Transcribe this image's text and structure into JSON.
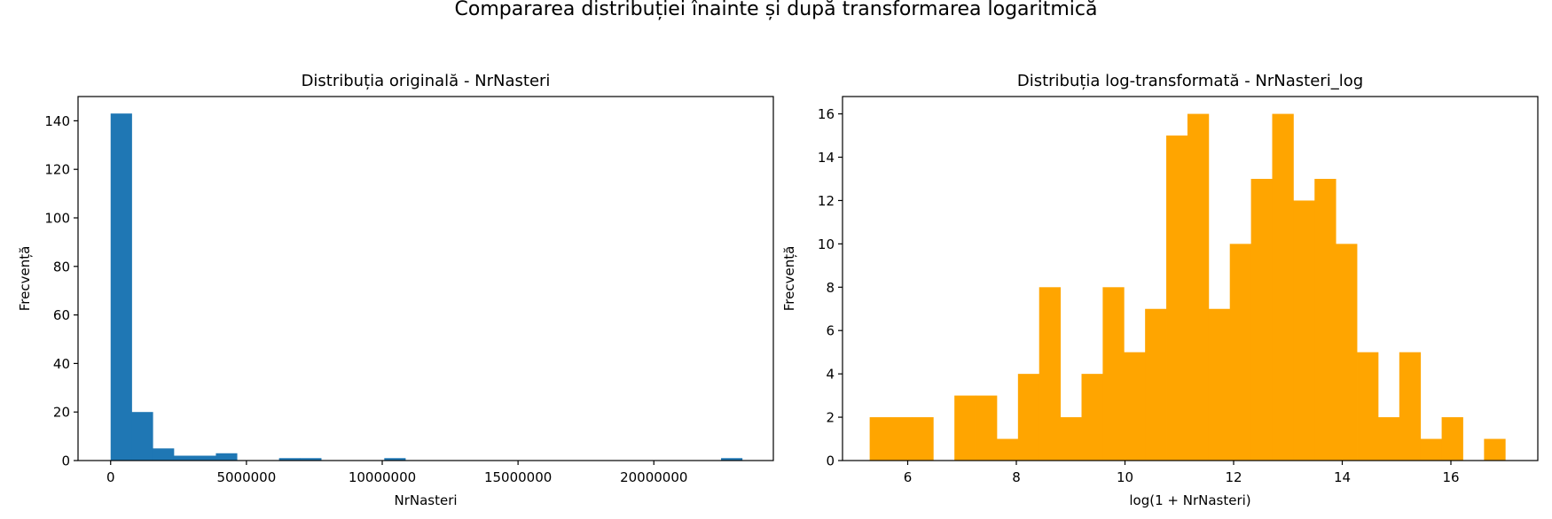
{
  "figure": {
    "suptitle": "Compararea distribuției înainte și după transformarea logaritmică"
  },
  "chart_data": [
    {
      "type": "bar",
      "title": "Distribuția originală - NrNasteri",
      "xlabel": "NrNasteri",
      "ylabel": "Frecvență",
      "color": "#1f77b4",
      "xlim": [
        -1200000,
        24400000
      ],
      "ylim": [
        0,
        150
      ],
      "xticks": [
        0,
        5000000,
        10000000,
        15000000,
        20000000
      ],
      "xtick_labels": [
        "0",
        "5000000",
        "10000000",
        "15000000",
        "20000000"
      ],
      "yticks": [
        0,
        20,
        40,
        60,
        80,
        100,
        120,
        140
      ],
      "ytick_labels": [
        "0",
        "20",
        "40",
        "60",
        "80",
        "100",
        "120",
        "140"
      ],
      "bin_edges": [
        0,
        775000,
        1550000,
        2325000,
        3100000,
        3875000,
        4650000,
        5425000,
        6200000,
        6975000,
        7750000,
        8525000,
        9300000,
        10075000,
        10850000,
        11625000,
        12400000,
        13175000,
        13950000,
        14725000,
        15500000,
        16275000,
        17050000,
        17825000,
        18600000,
        19375000,
        20150000,
        20925000,
        21700000,
        22475000,
        23250000
      ],
      "counts": [
        143,
        20,
        5,
        2,
        2,
        3,
        0,
        0,
        1,
        1,
        0,
        0,
        0,
        1,
        0,
        0,
        0,
        0,
        0,
        0,
        0,
        0,
        0,
        0,
        0,
        0,
        0,
        0,
        0,
        1
      ],
      "grid": false
    },
    {
      "type": "bar",
      "title": "Distribuția log-transformată - NrNasteri_log",
      "xlabel": "log(1 + NrNasteri)",
      "ylabel": "Frecvență",
      "color": "#ffa500",
      "xlim": [
        4.8,
        17.6
      ],
      "ylim": [
        0,
        16.8
      ],
      "xticks": [
        6,
        8,
        10,
        12,
        14,
        16
      ],
      "xtick_labels": [
        "6",
        "8",
        "10",
        "12",
        "14",
        "16"
      ],
      "yticks": [
        0,
        2,
        4,
        6,
        8,
        10,
        12,
        14,
        16
      ],
      "ytick_labels": [
        "0",
        "2",
        "4",
        "6",
        "8",
        "10",
        "12",
        "14",
        "16"
      ],
      "bin_edges": [
        5.3,
        5.69,
        6.08,
        6.47,
        6.86,
        7.25,
        7.64,
        8.03,
        8.42,
        8.81,
        9.2,
        9.59,
        9.98,
        10.37,
        10.76,
        11.15,
        11.54,
        11.93,
        12.32,
        12.71,
        13.1,
        13.49,
        13.88,
        14.27,
        14.66,
        15.05,
        15.44,
        15.83,
        16.22,
        16.61,
        17.0
      ],
      "counts": [
        2,
        2,
        2,
        0,
        3,
        3,
        1,
        4,
        8,
        2,
        4,
        8,
        5,
        7,
        15,
        16,
        7,
        10,
        13,
        16,
        12,
        13,
        10,
        5,
        2,
        5,
        1,
        2,
        0,
        1
      ],
      "grid": false
    }
  ]
}
